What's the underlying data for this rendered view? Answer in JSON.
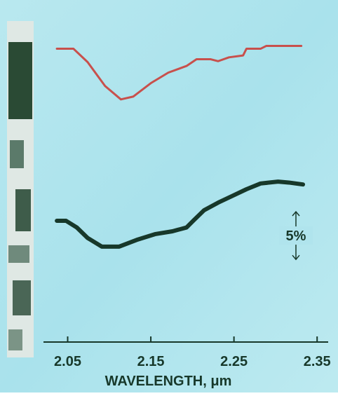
{
  "chart_data": {
    "type": "line",
    "x_label": "WAVELENGTH, μm",
    "xlim": [
      2.015,
      2.365
    ],
    "xticks": [
      2.05,
      2.15,
      2.25,
      2.35
    ],
    "ylim": [
      0,
      33
    ],
    "scale_bar": {
      "value": 5,
      "label": "5%"
    },
    "series": [
      {
        "color": "#c8504c",
        "x": [
          2.037,
          2.057,
          2.074,
          2.095,
          2.114,
          2.129,
          2.15,
          2.171,
          2.193,
          2.205,
          2.222,
          2.231,
          2.244,
          2.261,
          2.265,
          2.282,
          2.289,
          2.331
        ],
        "values": [
          30.1,
          30.1,
          28.7,
          26.2,
          24.8,
          25.1,
          26.5,
          27.6,
          28.3,
          29.0,
          29.0,
          28.8,
          29.2,
          29.4,
          30.1,
          30.1,
          30.4,
          30.4
        ]
      },
      {
        "color": "#17382a",
        "x": [
          2.037,
          2.048,
          2.061,
          2.074,
          2.091,
          2.112,
          2.133,
          2.155,
          2.176,
          2.193,
          2.201,
          2.214,
          2.231,
          2.248,
          2.265,
          2.282,
          2.303,
          2.316,
          2.333
        ],
        "values": [
          12.1,
          12.1,
          11.4,
          10.3,
          9.4,
          9.4,
          10.1,
          10.7,
          11.0,
          11.4,
          12.1,
          13.2,
          14.0,
          14.7,
          15.4,
          16.0,
          16.2,
          16.1,
          15.9
        ]
      }
    ]
  }
}
